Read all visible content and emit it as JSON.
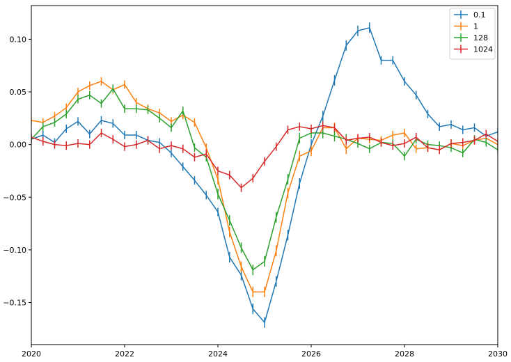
{
  "chart_data": {
    "type": "line",
    "error_bars": true,
    "grid": false,
    "legend_position": "top-right",
    "xlim": [
      2020,
      2030
    ],
    "ylim": [
      -0.19,
      0.132
    ],
    "x_ticks": [
      2020,
      2022,
      2024,
      2026,
      2028,
      2030
    ],
    "x_tick_labels": [
      "2020",
      "2022",
      "2024",
      "2026",
      "2028",
      "2030"
    ],
    "y_ticks": [
      -0.15,
      -0.1,
      -0.05,
      0.0,
      0.05,
      0.1
    ],
    "y_tick_labels": [
      "−0.15",
      "−0.10",
      "−0.05",
      "0.00",
      "0.05",
      "0.10"
    ],
    "x": [
      2020.0,
      2020.25,
      2020.5,
      2020.75,
      2021.0,
      2021.25,
      2021.5,
      2021.75,
      2022.0,
      2022.25,
      2022.5,
      2022.75,
      2023.0,
      2023.25,
      2023.5,
      2023.75,
      2024.0,
      2024.25,
      2024.5,
      2024.75,
      2025.0,
      2025.25,
      2025.5,
      2025.75,
      2026.0,
      2026.25,
      2026.5,
      2026.75,
      2027.0,
      2027.25,
      2027.5,
      2027.75,
      2028.0,
      2028.25,
      2028.5,
      2028.75,
      2029.0,
      2029.25,
      2029.5,
      2029.75,
      2030.0
    ],
    "series": [
      {
        "name": "0.1",
        "color": "#1f77b4",
        "values": [
          0.005,
          0.009,
          0.002,
          0.015,
          0.022,
          0.01,
          0.023,
          0.02,
          0.009,
          0.009,
          0.004,
          0.002,
          -0.008,
          -0.021,
          -0.034,
          -0.048,
          -0.064,
          -0.107,
          -0.124,
          -0.156,
          -0.169,
          -0.13,
          -0.086,
          -0.037,
          0.0,
          0.027,
          0.061,
          0.094,
          0.108,
          0.111,
          0.08,
          0.08,
          0.06,
          0.047,
          0.029,
          0.017,
          0.019,
          0.014,
          0.016,
          0.008,
          0.012
        ],
        "errors": [
          0.004,
          0.004,
          0.004,
          0.004,
          0.004,
          0.004,
          0.004,
          0.004,
          0.004,
          0.004,
          0.004,
          0.004,
          0.004,
          0.004,
          0.004,
          0.004,
          0.004,
          0.005,
          0.005,
          0.005,
          0.005,
          0.005,
          0.005,
          0.005,
          0.005,
          0.005,
          0.005,
          0.005,
          0.005,
          0.005,
          0.004,
          0.004,
          0.004,
          0.004,
          0.004,
          0.004,
          0.004,
          0.004,
          0.004,
          0.004,
          0.004
        ]
      },
      {
        "name": "1",
        "color": "#ff7f0e",
        "values": [
          0.023,
          0.021,
          0.027,
          0.035,
          0.05,
          0.056,
          0.06,
          0.052,
          0.057,
          0.04,
          0.034,
          0.03,
          0.022,
          0.028,
          0.021,
          -0.003,
          -0.033,
          -0.083,
          -0.116,
          -0.14,
          -0.14,
          -0.101,
          -0.046,
          -0.011,
          -0.006,
          0.016,
          0.016,
          -0.004,
          0.006,
          0.005,
          0.004,
          0.009,
          0.011,
          -0.004,
          -0.003,
          -0.005,
          0.001,
          -0.001,
          0.004,
          0.006,
          0.0
        ],
        "errors": [
          0.004,
          0.004,
          0.004,
          0.004,
          0.004,
          0.004,
          0.004,
          0.004,
          0.004,
          0.004,
          0.004,
          0.004,
          0.004,
          0.004,
          0.004,
          0.004,
          0.005,
          0.005,
          0.005,
          0.005,
          0.005,
          0.005,
          0.005,
          0.005,
          0.005,
          0.005,
          0.005,
          0.005,
          0.004,
          0.004,
          0.004,
          0.004,
          0.004,
          0.004,
          0.004,
          0.004,
          0.004,
          0.004,
          0.004,
          0.004,
          0.004
        ]
      },
      {
        "name": "128",
        "color": "#2ca02c",
        "values": [
          0.005,
          0.017,
          0.021,
          0.029,
          0.043,
          0.047,
          0.039,
          0.053,
          0.034,
          0.034,
          0.033,
          0.025,
          0.016,
          0.032,
          -0.003,
          -0.012,
          -0.047,
          -0.072,
          -0.098,
          -0.119,
          -0.111,
          -0.069,
          -0.033,
          0.006,
          0.011,
          0.011,
          0.008,
          0.005,
          0.001,
          -0.004,
          0.002,
          0.001,
          -0.011,
          0.005,
          0.0,
          -0.001,
          -0.003,
          -0.008,
          0.005,
          0.002,
          -0.005
        ],
        "errors": [
          0.004,
          0.004,
          0.004,
          0.004,
          0.004,
          0.004,
          0.004,
          0.004,
          0.004,
          0.004,
          0.004,
          0.004,
          0.004,
          0.004,
          0.004,
          0.004,
          0.005,
          0.005,
          0.005,
          0.005,
          0.005,
          0.005,
          0.005,
          0.005,
          0.005,
          0.005,
          0.005,
          0.005,
          0.004,
          0.004,
          0.004,
          0.004,
          0.004,
          0.004,
          0.004,
          0.004,
          0.004,
          0.004,
          0.004,
          0.004,
          0.004
        ]
      },
      {
        "name": "1024",
        "color": "#d62728",
        "values": [
          0.007,
          0.003,
          0.0,
          -0.001,
          0.001,
          0.0,
          0.011,
          0.005,
          -0.002,
          0.0,
          0.004,
          -0.004,
          -0.001,
          -0.004,
          -0.012,
          -0.009,
          -0.025,
          -0.029,
          -0.041,
          -0.032,
          -0.016,
          -0.002,
          0.014,
          0.017,
          0.015,
          0.018,
          0.016,
          0.004,
          0.006,
          0.007,
          0.002,
          -0.001,
          0.001,
          0.007,
          -0.003,
          -0.005,
          0.001,
          0.002,
          0.004,
          0.01,
          0.003
        ],
        "errors": [
          0.004,
          0.004,
          0.004,
          0.004,
          0.004,
          0.004,
          0.004,
          0.004,
          0.004,
          0.004,
          0.004,
          0.004,
          0.004,
          0.004,
          0.004,
          0.004,
          0.004,
          0.004,
          0.004,
          0.004,
          0.004,
          0.004,
          0.004,
          0.004,
          0.004,
          0.004,
          0.004,
          0.004,
          0.004,
          0.004,
          0.004,
          0.004,
          0.004,
          0.004,
          0.004,
          0.004,
          0.004,
          0.004,
          0.004,
          0.004,
          0.004
        ]
      }
    ]
  }
}
